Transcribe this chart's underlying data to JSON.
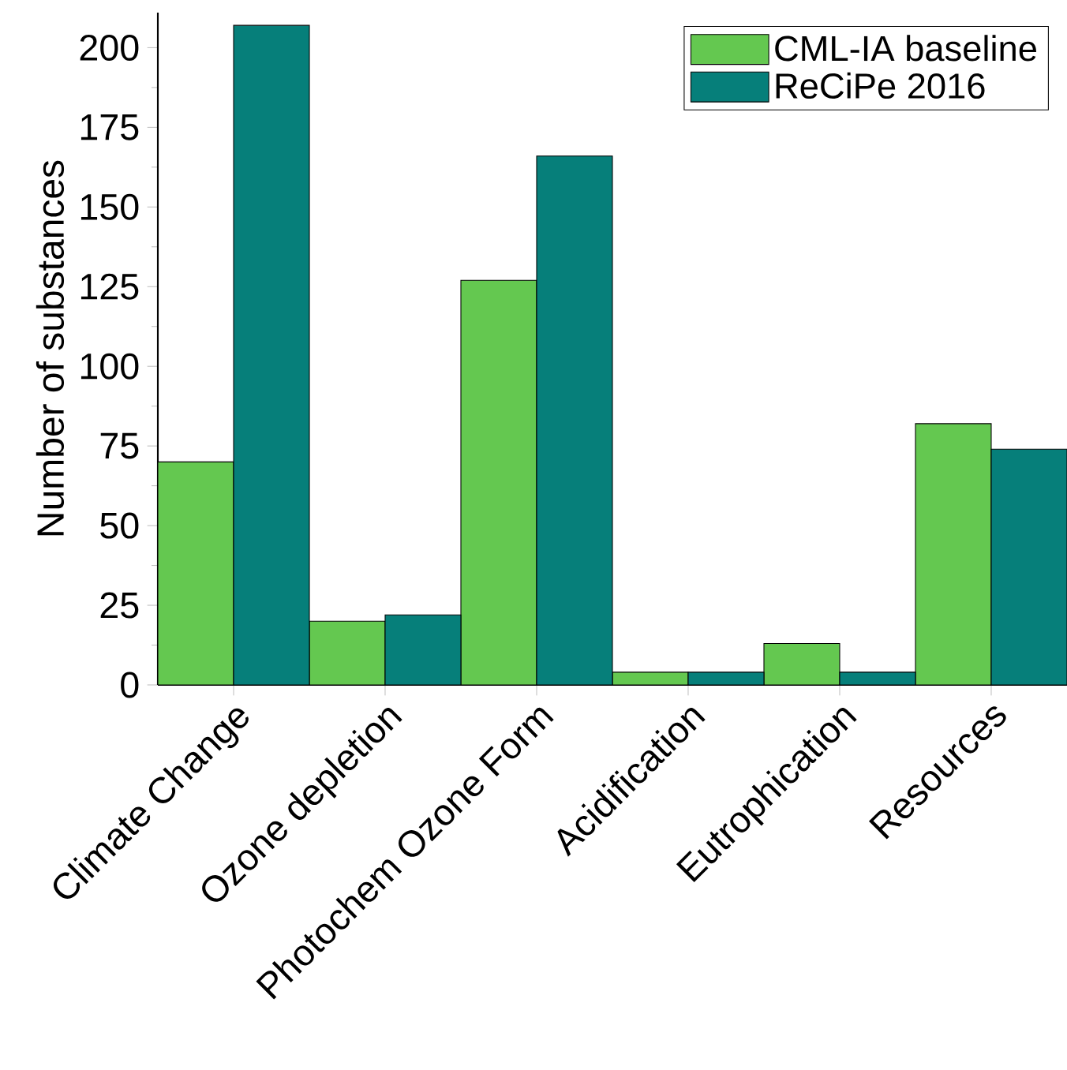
{
  "chart_data": {
    "type": "bar",
    "ylabel": "Number of substances",
    "categories": [
      "Climate Change",
      "Ozone depletion",
      "Photochem Ozone Form",
      "Acidification",
      "Eutrophication",
      "Resources"
    ],
    "series": [
      {
        "name": "CML-IA baseline",
        "color": "#64c850",
        "values": [
          70,
          20,
          127,
          4,
          13,
          82
        ]
      },
      {
        "name": "ReCiPe 2016",
        "color": "#067f7a",
        "values": [
          207,
          22,
          166,
          4,
          4,
          74
        ]
      }
    ],
    "ylim": [
      0,
      211
    ],
    "yticks": [
      0,
      25,
      50,
      75,
      100,
      125,
      150,
      175,
      200
    ],
    "grid": false,
    "legend": "top right"
  }
}
